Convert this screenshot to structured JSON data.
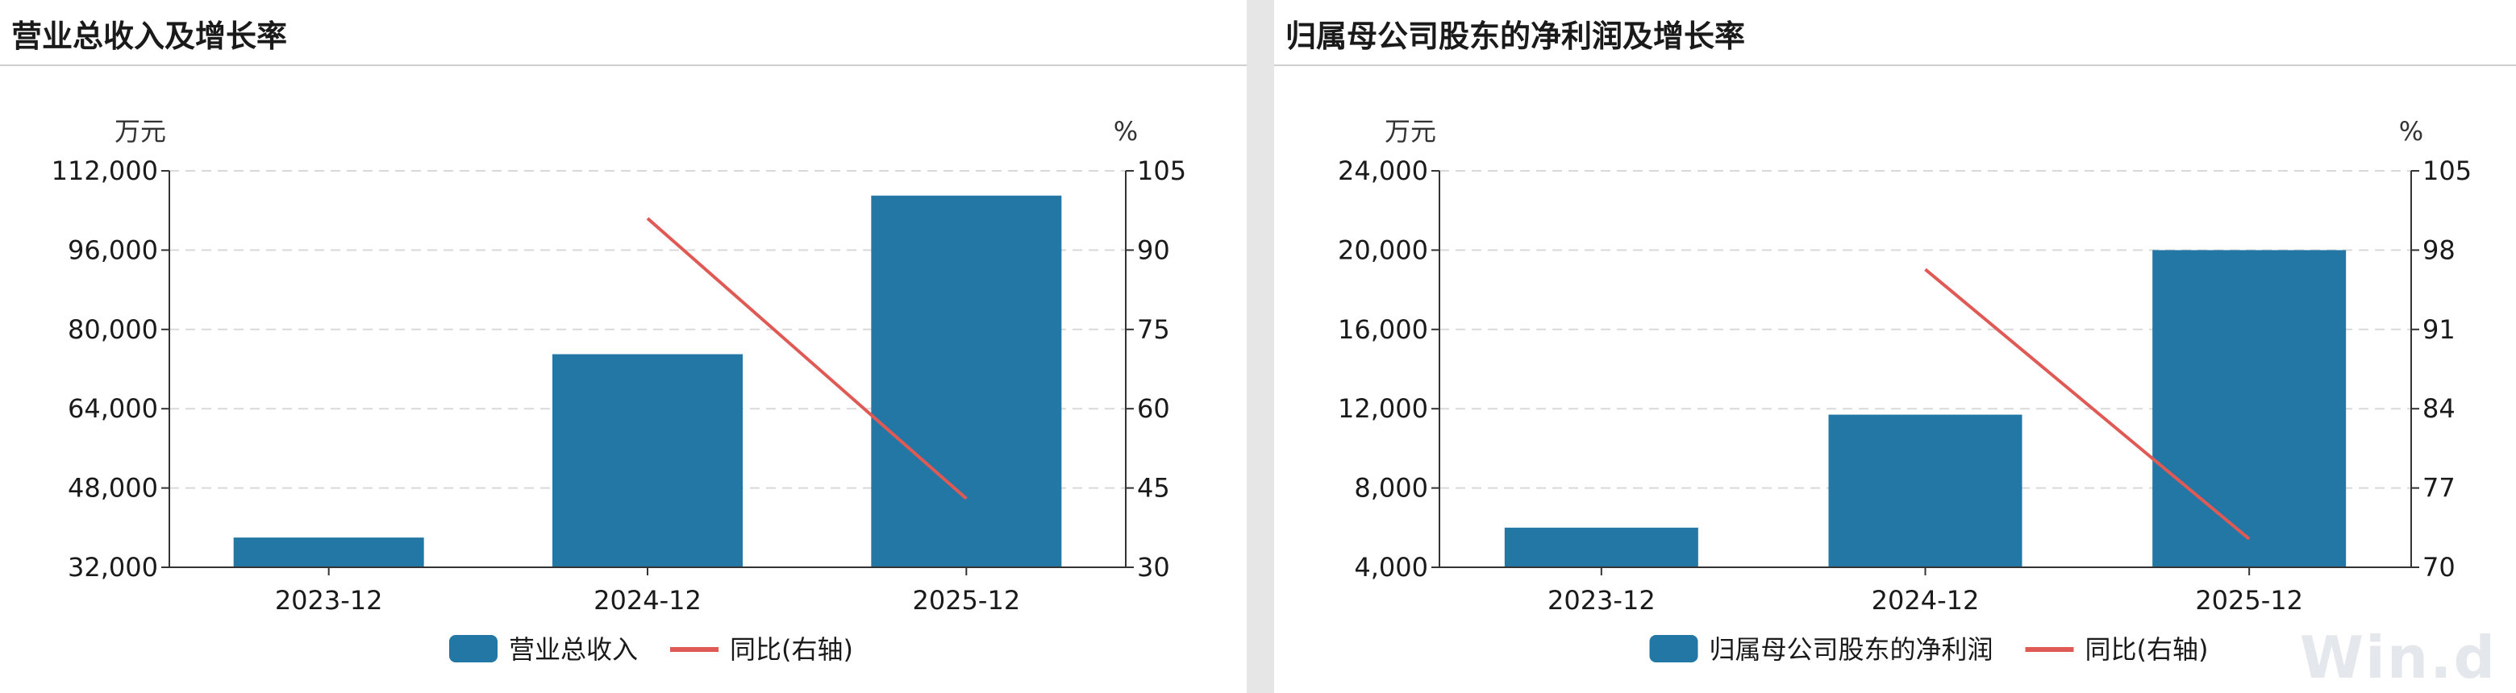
{
  "watermark": "Win.d",
  "chart_data": [
    {
      "type": "bar",
      "title": "营业总收入及增长率",
      "categories": [
        "2023-12",
        "2024-12",
        "2025-12"
      ],
      "series": [
        {
          "name": "营业总收入",
          "type": "bar",
          "axis": "left",
          "values": [
            38000,
            75000,
            107000
          ]
        },
        {
          "name": "同比(右轴)",
          "type": "line",
          "axis": "right",
          "values": [
            null,
            96,
            43
          ]
        }
      ],
      "left_axis": {
        "unit": "万元",
        "ylim": [
          32000,
          112000
        ],
        "ticks": [
          32000,
          48000,
          64000,
          80000,
          96000,
          112000
        ],
        "tick_labels": [
          "32,000",
          "48,000",
          "64,000",
          "80,000",
          "96,000",
          "112,000"
        ]
      },
      "right_axis": {
        "unit": "%",
        "ylim": [
          30,
          105
        ],
        "ticks": [
          30,
          45,
          60,
          75,
          90,
          105
        ],
        "tick_labels": [
          "30",
          "45",
          "60",
          "75",
          "90",
          "105"
        ]
      },
      "grid": true,
      "legend": "bottom",
      "colors": {
        "bar": "#2277a4",
        "line": "#e05a55"
      }
    },
    {
      "type": "bar",
      "title": "归属母公司股东的净利润及增长率",
      "categories": [
        "2023-12",
        "2024-12",
        "2025-12"
      ],
      "series": [
        {
          "name": "归属母公司股东的净利润",
          "type": "bar",
          "axis": "left",
          "values": [
            6000,
            11700,
            20000
          ]
        },
        {
          "name": "同比(右轴)",
          "type": "line",
          "axis": "right",
          "values": [
            null,
            96.3,
            72.5
          ]
        }
      ],
      "left_axis": {
        "unit": "万元",
        "ylim": [
          4000,
          24000
        ],
        "ticks": [
          4000,
          8000,
          12000,
          16000,
          20000,
          24000
        ],
        "tick_labels": [
          "4,000",
          "8,000",
          "12,000",
          "16,000",
          "20,000",
          "24,000"
        ]
      },
      "right_axis": {
        "unit": "%",
        "ylim": [
          70,
          105
        ],
        "ticks": [
          70,
          77,
          84,
          91,
          98,
          105
        ],
        "tick_labels": [
          "70",
          "77",
          "84",
          "91",
          "98",
          "105"
        ]
      },
      "grid": true,
      "legend": "bottom",
      "colors": {
        "bar": "#2277a4",
        "line": "#e05a55"
      }
    }
  ]
}
